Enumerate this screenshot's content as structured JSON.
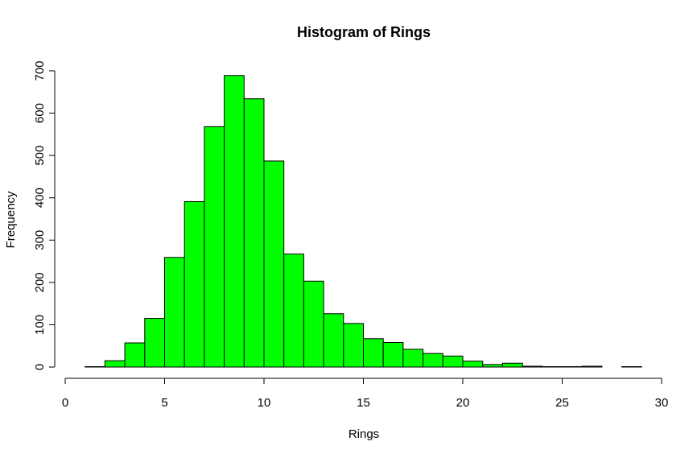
{
  "chart_data": {
    "type": "bar",
    "title": "Histogram of Rings",
    "xlabel": "Rings",
    "ylabel": "Frequency",
    "bar_color": "#00ff00",
    "bar_border": "#000000",
    "bin_width": 1,
    "x": [
      1,
      2,
      3,
      4,
      5,
      6,
      7,
      8,
      9,
      10,
      11,
      12,
      13,
      14,
      15,
      16,
      17,
      18,
      19,
      20,
      21,
      22,
      23,
      24,
      25,
      26,
      27,
      28
    ],
    "values": [
      1,
      15,
      57,
      115,
      259,
      391,
      568,
      689,
      634,
      487,
      267,
      203,
      126,
      103,
      67,
      58,
      42,
      32,
      26,
      14,
      6,
      9,
      2,
      1,
      1,
      2,
      0,
      1
    ],
    "xlim": [
      0,
      30
    ],
    "ylim": [
      0,
      700
    ],
    "xticks": [
      "0",
      "5",
      "10",
      "15",
      "20",
      "25",
      "30"
    ],
    "yticks": [
      "0",
      "100",
      "200",
      "300",
      "400",
      "500",
      "600",
      "700"
    ],
    "grid": false,
    "legend": "none"
  }
}
